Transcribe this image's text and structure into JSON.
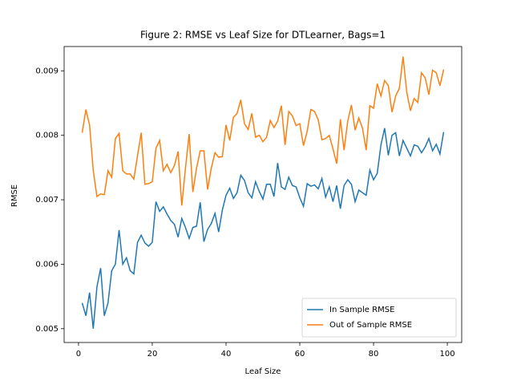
{
  "chart_data": {
    "type": "line",
    "title": "Figure 2: RMSE vs Leaf Size for DTLearner, Bags=1",
    "x_label": "Leaf Size",
    "y_label": "RMSE",
    "x": [
      1,
      2,
      3,
      4,
      5,
      6,
      7,
      8,
      9,
      10,
      11,
      12,
      13,
      14,
      15,
      16,
      17,
      18,
      19,
      20,
      21,
      22,
      23,
      24,
      25,
      26,
      27,
      28,
      29,
      30,
      31,
      32,
      33,
      34,
      35,
      36,
      37,
      38,
      39,
      40,
      41,
      42,
      43,
      44,
      45,
      46,
      47,
      48,
      49,
      50,
      51,
      52,
      53,
      54,
      55,
      56,
      57,
      58,
      59,
      60,
      61,
      62,
      63,
      64,
      65,
      66,
      67,
      68,
      69,
      70,
      71,
      72,
      73,
      74,
      75,
      76,
      77,
      78,
      79,
      80,
      81,
      82,
      83,
      84,
      85,
      86,
      87,
      88,
      89,
      90,
      91,
      92,
      93,
      94,
      95,
      96,
      97,
      98,
      99
    ],
    "series": [
      {
        "name": "In Sample RMSE",
        "color": "#1f77b4",
        "values": [
          0.0054,
          0.0052,
          0.00556,
          0.005,
          0.00565,
          0.00594,
          0.0052,
          0.0054,
          0.0059,
          0.006,
          0.00653,
          0.006,
          0.0061,
          0.0059,
          0.00585,
          0.00634,
          0.00645,
          0.00633,
          0.00628,
          0.00634,
          0.00697,
          0.00682,
          0.00689,
          0.00678,
          0.00668,
          0.00662,
          0.00642,
          0.00671,
          0.00657,
          0.0064,
          0.00657,
          0.00659,
          0.00696,
          0.00635,
          0.00654,
          0.00663,
          0.00679,
          0.0065,
          0.00684,
          0.00707,
          0.00718,
          0.00702,
          0.00711,
          0.00738,
          0.0073,
          0.00711,
          0.00703,
          0.00728,
          0.00713,
          0.00701,
          0.00724,
          0.00724,
          0.00705,
          0.00757,
          0.0072,
          0.00716,
          0.00735,
          0.00722,
          0.0072,
          0.00703,
          0.0069,
          0.00725,
          0.00721,
          0.00723,
          0.00717,
          0.00733,
          0.00704,
          0.0072,
          0.00697,
          0.00722,
          0.00686,
          0.00722,
          0.00731,
          0.00724,
          0.00697,
          0.00715,
          0.00711,
          0.00707,
          0.00746,
          0.00731,
          0.00741,
          0.00785,
          0.00811,
          0.00769,
          0.008,
          0.00804,
          0.00768,
          0.00792,
          0.0078,
          0.00768,
          0.00785,
          0.00783,
          0.00773,
          0.00782,
          0.00795,
          0.00776,
          0.00786,
          0.00771,
          0.00805
        ]
      },
      {
        "name": "Out of Sample RMSE",
        "color": "#ff7f0e",
        "values": [
          0.00804,
          0.0084,
          0.00816,
          0.00745,
          0.00705,
          0.00709,
          0.00708,
          0.00745,
          0.00735,
          0.00795,
          0.00803,
          0.00745,
          0.0074,
          0.0074,
          0.00732,
          0.00768,
          0.00804,
          0.00724,
          0.00725,
          0.00728,
          0.0078,
          0.00792,
          0.00745,
          0.00755,
          0.00742,
          0.00753,
          0.00775,
          0.00691,
          0.00749,
          0.00802,
          0.00712,
          0.00749,
          0.00776,
          0.00776,
          0.00716,
          0.00749,
          0.00773,
          0.00766,
          0.00767,
          0.00816,
          0.00792,
          0.00828,
          0.00834,
          0.00855,
          0.00818,
          0.00809,
          0.00834,
          0.00797,
          0.008,
          0.0079,
          0.00797,
          0.00823,
          0.00812,
          0.00822,
          0.00846,
          0.00785,
          0.00837,
          0.0083,
          0.00815,
          0.00818,
          0.00784,
          0.00806,
          0.0084,
          0.00837,
          0.00824,
          0.00793,
          0.00795,
          0.008,
          0.00779,
          0.00756,
          0.00825,
          0.00777,
          0.00822,
          0.00847,
          0.00808,
          0.00827,
          0.00811,
          0.00777,
          0.00846,
          0.00842,
          0.0088,
          0.00861,
          0.00885,
          0.00877,
          0.00836,
          0.00861,
          0.00873,
          0.00922,
          0.00867,
          0.00838,
          0.00857,
          0.00851,
          0.00897,
          0.00889,
          0.00863,
          0.00901,
          0.00897,
          0.00877,
          0.00902
        ]
      }
    ],
    "xlim": [
      -3.9,
      103.9
    ],
    "xticks": [
      0,
      20,
      40,
      60,
      80,
      100
    ],
    "ylim": [
      0.004786,
      0.009377
    ],
    "yticks": [
      0.005,
      0.006,
      0.007,
      0.008,
      0.009
    ],
    "legend": "lower right"
  }
}
